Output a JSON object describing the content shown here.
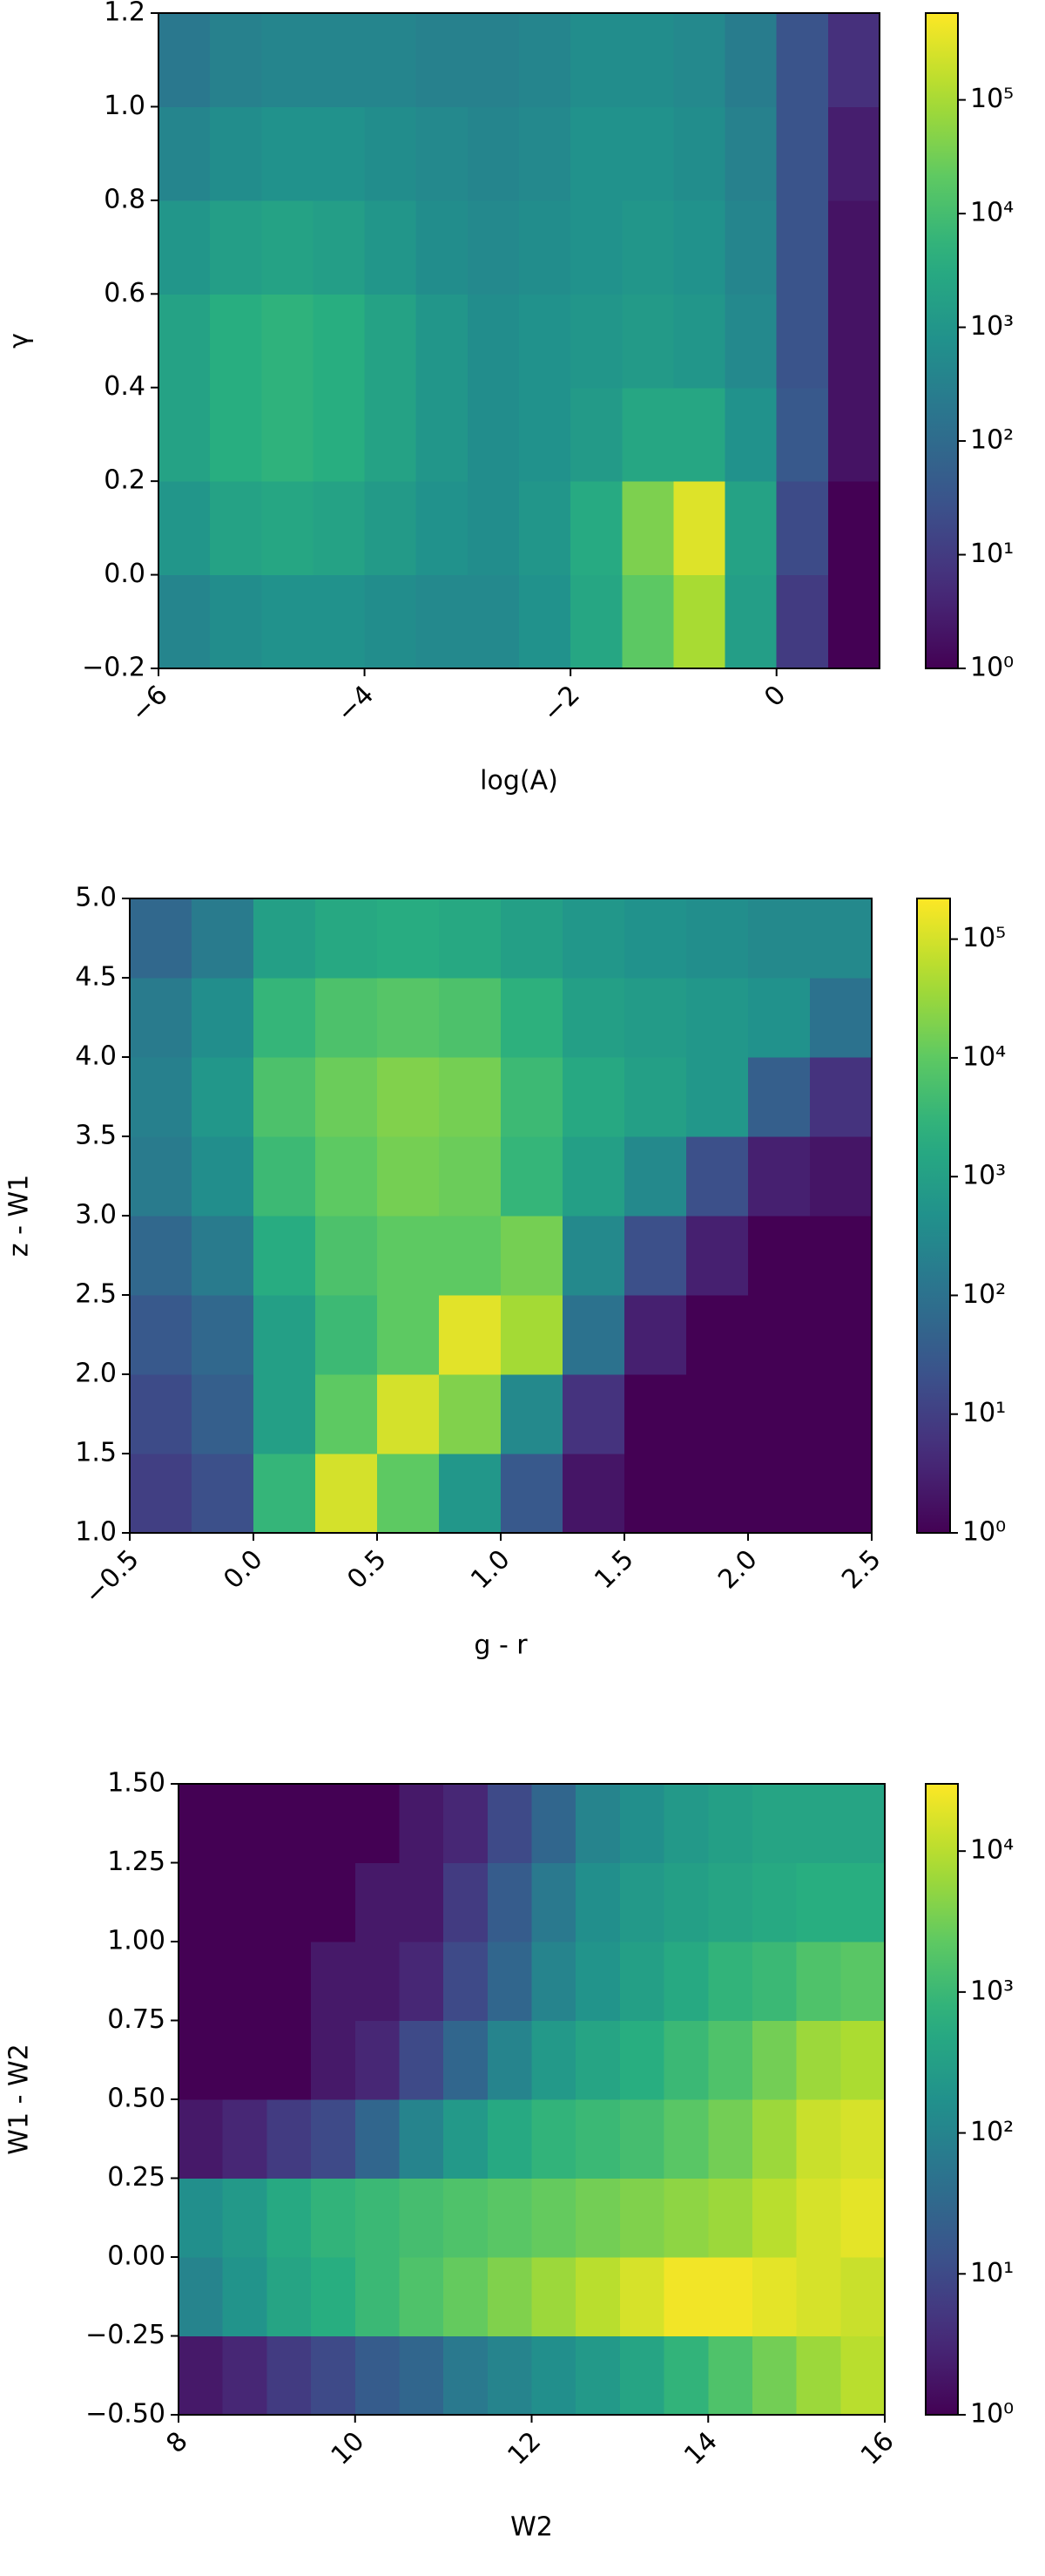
{
  "chart_data": [
    {
      "type": "heatmap",
      "x_label": "log(A)",
      "y_label": "γ",
      "colormap": "viridis",
      "color_scale": "log",
      "xlim": [
        -6,
        1
      ],
      "ylim": [
        -0.2,
        1.2
      ],
      "clim": [
        1,
        580000
      ],
      "xticks": [
        {
          "value": -6,
          "label": "−6"
        },
        {
          "value": -4,
          "label": "−4"
        },
        {
          "value": -2,
          "label": "−2"
        },
        0
      ],
      "yticks": [
        {
          "value": -0.2,
          "label": "−0.2"
        },
        {
          "value": 0,
          "label": "0.0"
        },
        0.2,
        0.4,
        0.6,
        0.8,
        {
          "value": 1,
          "label": "1.0"
        },
        1.2
      ],
      "cticks": [
        {
          "value": 1,
          "label": "10⁰"
        },
        {
          "value": 10,
          "label": "10¹"
        },
        {
          "value": 100,
          "label": "10²"
        },
        {
          "value": 1000,
          "label": "10³"
        },
        {
          "value": 10000,
          "label": "10⁴"
        },
        {
          "value": 100000,
          "label": "10⁵"
        }
      ],
      "x_bins": [
        -6,
        -5.5,
        -5,
        -4.5,
        -4,
        -3.5,
        -3,
        -2.5,
        -2,
        -1.5,
        -1,
        -0.5,
        0,
        0.5,
        1
      ],
      "y_bins": [
        -0.2,
        0,
        0.2,
        0.4,
        0.6,
        0.8,
        1,
        1.2
      ],
      "values": [
        [
          400,
          630,
          800,
          800,
          630,
          500,
          500,
          800,
          2500,
          20000,
          100000,
          1600,
          10,
          1
        ],
        [
          1000,
          2000,
          2500,
          2000,
          1300,
          800,
          630,
          1000,
          3200,
          40000,
          300000,
          2000,
          20,
          1
        ],
        [
          2000,
          4000,
          5000,
          4000,
          2000,
          1000,
          630,
          800,
          1300,
          2500,
          2500,
          800,
          40,
          2
        ],
        [
          2000,
          4000,
          5000,
          4000,
          2000,
          1000,
          630,
          800,
          1000,
          1300,
          1000,
          500,
          30,
          2
        ],
        [
          1000,
          1600,
          2000,
          1600,
          1000,
          630,
          500,
          630,
          800,
          1000,
          800,
          400,
          30,
          2
        ],
        [
          400,
          630,
          800,
          800,
          630,
          500,
          400,
          500,
          800,
          800,
          630,
          320,
          30,
          3
        ],
        [
          200,
          320,
          400,
          400,
          400,
          320,
          320,
          400,
          630,
          630,
          500,
          250,
          30,
          6
        ]
      ]
    },
    {
      "type": "heatmap",
      "x_label": "g - r",
      "y_label": "z - W1",
      "colormap": "viridis",
      "color_scale": "log",
      "xlim": [
        -0.5,
        2.5
      ],
      "ylim": [
        1,
        5
      ],
      "clim": [
        1,
        220000
      ],
      "xticks": [
        {
          "value": -0.5,
          "label": "−0.5"
        },
        {
          "value": 0,
          "label": "0.0"
        },
        0.5,
        {
          "value": 1,
          "label": "1.0"
        },
        1.5,
        {
          "value": 2,
          "label": "2.0"
        },
        2.5
      ],
      "yticks": [
        {
          "value": 1,
          "label": "1.0"
        },
        1.5,
        {
          "value": 2,
          "label": "2.0"
        },
        2.5,
        {
          "value": 3,
          "label": "3.0"
        },
        3.5,
        {
          "value": 4,
          "label": "4.0"
        },
        4.5,
        {
          "value": 5,
          "label": "5.0"
        }
      ],
      "cticks": [
        {
          "value": 1,
          "label": "10⁰"
        },
        {
          "value": 10,
          "label": "10¹"
        },
        {
          "value": 100,
          "label": "10²"
        },
        {
          "value": 1000,
          "label": "10³"
        },
        {
          "value": 10000,
          "label": "10⁴"
        },
        {
          "value": 100000,
          "label": "10⁵"
        }
      ],
      "x_bins": [
        -0.5,
        -0.25,
        0,
        0.25,
        0.5,
        0.75,
        1,
        1.25,
        1.5,
        1.75,
        2,
        2.25,
        2.5
      ],
      "y_bins": [
        1,
        1.5,
        2,
        2.5,
        3,
        3.5,
        4,
        4.5,
        5
      ],
      "values": [
        [
          10,
          20,
          3200,
          100000,
          10000,
          630,
          30,
          2,
          1,
          1,
          1,
          1
        ],
        [
          16,
          40,
          1000,
          10000,
          100000,
          20000,
          320,
          6,
          1,
          1,
          1,
          1
        ],
        [
          30,
          63,
          1000,
          4000,
          10000,
          130000,
          40000,
          100,
          3,
          1,
          1,
          1
        ],
        [
          63,
          160,
          2000,
          6300,
          10000,
          10000,
          16000,
          320,
          20,
          3,
          1,
          1
        ],
        [
          160,
          400,
          4000,
          10000,
          16000,
          13000,
          3200,
          1000,
          320,
          20,
          3,
          2
        ],
        [
          200,
          630,
          6300,
          13000,
          20000,
          16000,
          4000,
          1600,
          1000,
          630,
          40,
          6
        ],
        [
          160,
          400,
          3200,
          6300,
          8000,
          6300,
          2500,
          1000,
          800,
          630,
          500,
          100
        ],
        [
          63,
          160,
          1000,
          1600,
          2000,
          1600,
          1000,
          630,
          500,
          400,
          320,
          320
        ]
      ]
    },
    {
      "type": "heatmap",
      "x_label": "W2",
      "y_label": "W1 - W2",
      "colormap": "viridis",
      "color_scale": "log",
      "xlim": [
        8,
        16
      ],
      "ylim": [
        -0.5,
        1.5
      ],
      "clim": [
        1,
        30000
      ],
      "xticks": [
        8,
        10,
        12,
        14,
        16
      ],
      "yticks": [
        {
          "value": -0.5,
          "label": "−0.50"
        },
        {
          "value": -0.25,
          "label": "−0.25"
        },
        {
          "value": 0,
          "label": "0.00"
        },
        0.25,
        {
          "value": 0.5,
          "label": "0.50"
        },
        0.75,
        {
          "value": 1,
          "label": "1.00"
        },
        1.25,
        {
          "value": 1.5,
          "label": "1.50"
        }
      ],
      "cticks": [
        {
          "value": 1,
          "label": "10⁰"
        },
        {
          "value": 10,
          "label": "10¹"
        },
        {
          "value": 100,
          "label": "10²"
        },
        {
          "value": 1000,
          "label": "10³"
        },
        {
          "value": 10000,
          "label": "10⁴"
        }
      ],
      "x_bins": [
        8,
        8.5,
        9,
        9.5,
        10,
        10.5,
        11,
        11.5,
        12,
        12.5,
        13,
        13.5,
        14,
        14.5,
        15,
        15.5,
        16
      ],
      "y_bins": [
        -0.5,
        -0.25,
        0,
        0.25,
        0.5,
        0.75,
        1,
        1.25,
        1.5
      ],
      "values": [
        [
          2,
          3,
          6,
          10,
          20,
          30,
          63,
          100,
          160,
          250,
          400,
          800,
          1600,
          3200,
          6300,
          10000
        ],
        [
          100,
          200,
          400,
          630,
          1000,
          1600,
          2500,
          4000,
          6300,
          10000,
          16000,
          25000,
          25000,
          20000,
          16000,
          13000
        ],
        [
          160,
          250,
          500,
          800,
          1000,
          1300,
          1600,
          2000,
          2500,
          3200,
          4000,
          5000,
          6300,
          10000,
          16000,
          20000
        ],
        [
          2,
          3,
          6,
          10,
          30,
          100,
          250,
          500,
          800,
          1000,
          1300,
          2000,
          3200,
          6300,
          13000,
          16000
        ],
        [
          1,
          1,
          1,
          2,
          3,
          10,
          30,
          100,
          250,
          400,
          630,
          1000,
          1600,
          3200,
          6300,
          8000
        ],
        [
          1,
          1,
          1,
          2,
          2,
          3,
          10,
          30,
          100,
          200,
          320,
          500,
          800,
          1000,
          1600,
          2000
        ],
        [
          1,
          1,
          1,
          1,
          2,
          2,
          6,
          20,
          63,
          160,
          250,
          320,
          400,
          500,
          630,
          630
        ],
        [
          1,
          1,
          1,
          1,
          1,
          2,
          3,
          10,
          30,
          100,
          160,
          250,
          320,
          400,
          400,
          400
        ]
      ]
    }
  ]
}
